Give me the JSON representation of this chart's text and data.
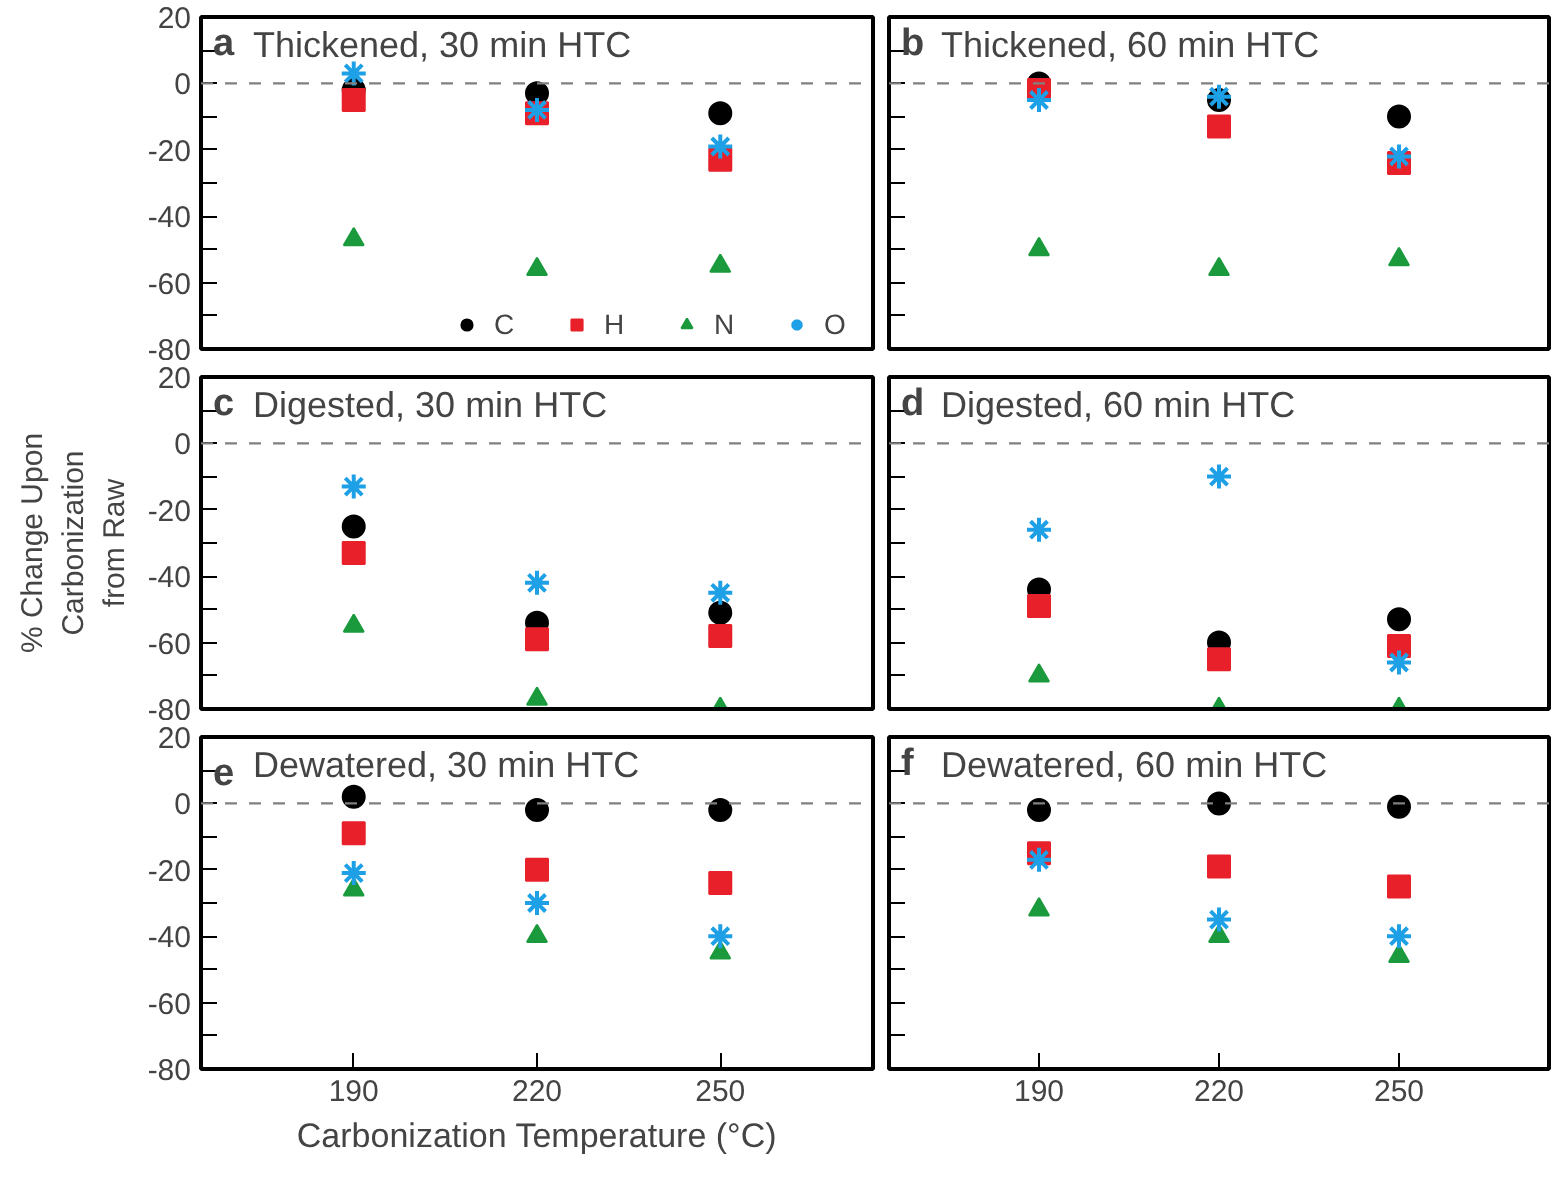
{
  "chart_data": [
    {
      "type": "scatter",
      "title": "Thickened, 30 min HTC",
      "annotations": [
        "a"
      ],
      "x": [
        190,
        220,
        250
      ],
      "xlim": [
        165,
        275
      ],
      "xticks": [
        190,
        220,
        250
      ],
      "ylim": [
        -80,
        20
      ],
      "yticks": [
        -80,
        {
          "value": -70,
          "label": null
        },
        -60,
        {
          "value": -50,
          "label": null
        },
        -40,
        {
          "value": -30,
          "label": null
        },
        -20,
        {
          "value": -10,
          "label": null
        },
        0,
        {
          "value": 10,
          "label": null
        },
        20
      ],
      "tick_labels": "y",
      "grid": false,
      "legend": "bottom right",
      "ref_lines": [
        {
          "axis": "y",
          "value": 0,
          "color": "#808080",
          "line_style": "dashed"
        }
      ],
      "series": [
        {
          "name": "C",
          "color": "#000000",
          "marker": "circle",
          "values": [
            -2,
            -3,
            -9
          ]
        },
        {
          "name": "H",
          "color": "#e8202a",
          "marker": "square",
          "values": [
            -5,
            -9,
            -23
          ]
        },
        {
          "name": "N",
          "color": "#1a9a3c",
          "marker": "triangle",
          "values": [
            -47,
            -56,
            -55
          ]
        },
        {
          "name": "O",
          "color": "#1ea0e6",
          "marker": "cross",
          "values": [
            3,
            -8,
            -19
          ]
        }
      ]
    },
    {
      "type": "scatter",
      "title": "Thickened, 60 min HTC",
      "annotations": [
        "b"
      ],
      "x": [
        190,
        220,
        250
      ],
      "xlim": [
        165,
        275
      ],
      "xticks": [
        190,
        220,
        250
      ],
      "ylim": [
        -80,
        20
      ],
      "yticks": [
        -80,
        {
          "value": -70,
          "label": null
        },
        -60,
        {
          "value": -50,
          "label": null
        },
        -40,
        {
          "value": -30,
          "label": null
        },
        -20,
        {
          "value": -10,
          "label": null
        },
        0,
        {
          "value": 10,
          "label": null
        },
        20
      ],
      "tick_labels": false,
      "grid": false,
      "ref_lines": [
        {
          "axis": "y",
          "value": 0,
          "color": "#808080",
          "line_style": "dashed"
        }
      ],
      "series": [
        {
          "color": "#000000",
          "marker": "circle",
          "values": [
            0,
            -5,
            -10
          ]
        },
        {
          "color": "#e8202a",
          "marker": "square",
          "values": [
            -2,
            -13,
            -24
          ]
        },
        {
          "color": "#1a9a3c",
          "marker": "triangle",
          "values": [
            -50,
            -56,
            -53
          ]
        },
        {
          "color": "#1ea0e6",
          "marker": "cross",
          "values": [
            -5,
            -4,
            -22
          ]
        }
      ]
    },
    {
      "type": "scatter",
      "title": "Digested, 30 min HTC",
      "annotations": [
        "c"
      ],
      "ylabel": "% Change Upon Carbonization from Raw",
      "x": [
        190,
        220,
        250
      ],
      "xlim": [
        165,
        275
      ],
      "xticks": [
        190,
        220,
        250
      ],
      "ylim": [
        -80,
        20
      ],
      "yticks": [
        -80,
        {
          "value": -70,
          "label": null
        },
        -60,
        {
          "value": -50,
          "label": null
        },
        -40,
        {
          "value": -30,
          "label": null
        },
        -20,
        {
          "value": -10,
          "label": null
        },
        0,
        {
          "value": 10,
          "label": null
        },
        20
      ],
      "tick_labels": "y",
      "grid": false,
      "ref_lines": [
        {
          "axis": "y",
          "value": 0,
          "color": "#808080",
          "line_style": "dashed"
        }
      ],
      "series": [
        {
          "color": "#000000",
          "marker": "circle",
          "values": [
            -25,
            -54,
            -51
          ]
        },
        {
          "color": "#e8202a",
          "marker": "square",
          "values": [
            -33,
            -59,
            -58
          ]
        },
        {
          "color": "#1a9a3c",
          "marker": "triangle",
          "values": [
            -55,
            -77,
            -80
          ]
        },
        {
          "color": "#1ea0e6",
          "marker": "cross",
          "values": [
            -13,
            -42,
            -45
          ]
        }
      ]
    },
    {
      "type": "scatter",
      "title": "Digested, 60 min HTC",
      "annotations": [
        "d"
      ],
      "x": [
        190,
        220,
        250
      ],
      "xlim": [
        165,
        275
      ],
      "xticks": [
        190,
        220,
        250
      ],
      "ylim": [
        -80,
        20
      ],
      "yticks": [
        -80,
        {
          "value": -70,
          "label": null
        },
        -60,
        {
          "value": -50,
          "label": null
        },
        -40,
        {
          "value": -30,
          "label": null
        },
        -20,
        {
          "value": -10,
          "label": null
        },
        0,
        {
          "value": 10,
          "label": null
        },
        20
      ],
      "tick_labels": false,
      "grid": false,
      "ref_lines": [
        {
          "axis": "y",
          "value": 0,
          "color": "#808080",
          "line_style": "dashed"
        }
      ],
      "series": [
        {
          "color": "#000000",
          "marker": "circle",
          "values": [
            -44,
            -60,
            -53
          ]
        },
        {
          "color": "#e8202a",
          "marker": "square",
          "values": [
            -49,
            -65,
            -61
          ]
        },
        {
          "color": "#1a9a3c",
          "marker": "triangle",
          "values": [
            -70,
            -80,
            -80
          ]
        },
        {
          "color": "#1ea0e6",
          "marker": "cross",
          "values": [
            -26,
            -10,
            -66
          ]
        }
      ]
    },
    {
      "type": "scatter",
      "title": "Dewatered, 30 min HTC",
      "annotations": [
        "e"
      ],
      "xlabel": "Carbonization Temperature (°C)",
      "x": [
        190,
        220,
        250
      ],
      "xlim": [
        165,
        275
      ],
      "xticks": [
        190,
        220,
        250
      ],
      "ylim": [
        -80,
        20
      ],
      "yticks": [
        -80,
        {
          "value": -70,
          "label": null
        },
        -60,
        {
          "value": -50,
          "label": null
        },
        -40,
        {
          "value": -30,
          "label": null
        },
        -20,
        {
          "value": -10,
          "label": null
        },
        0,
        {
          "value": 10,
          "label": null
        },
        20
      ],
      "grid": false,
      "ref_lines": [
        {
          "axis": "y",
          "value": 0,
          "color": "#808080",
          "line_style": "dashed"
        }
      ],
      "series": [
        {
          "color": "#000000",
          "marker": "circle",
          "values": [
            2,
            -2,
            -2
          ]
        },
        {
          "color": "#e8202a",
          "marker": "square",
          "values": [
            -9,
            -20,
            -24
          ]
        },
        {
          "color": "#1a9a3c",
          "marker": "triangle",
          "values": [
            -26,
            -40,
            -45
          ]
        },
        {
          "color": "#1ea0e6",
          "marker": "cross",
          "values": [
            -21,
            -30,
            -40
          ]
        }
      ]
    },
    {
      "type": "scatter",
      "title": "Dewatered, 60 min HTC",
      "annotations": [
        "f"
      ],
      "x": [
        190,
        220,
        250
      ],
      "xlim": [
        165,
        275
      ],
      "xticks": [
        190,
        220,
        250
      ],
      "ylim": [
        -80,
        20
      ],
      "yticks": [
        -80,
        {
          "value": -70,
          "label": null
        },
        -60,
        {
          "value": -50,
          "label": null
        },
        -40,
        {
          "value": -30,
          "label": null
        },
        -20,
        {
          "value": -10,
          "label": null
        },
        0,
        {
          "value": 10,
          "label": null
        },
        20
      ],
      "tick_labels": "x",
      "grid": false,
      "ref_lines": [
        {
          "axis": "y",
          "value": 0,
          "color": "#808080",
          "line_style": "dashed"
        }
      ],
      "series": [
        {
          "color": "#000000",
          "marker": "circle",
          "values": [
            -2,
            0,
            -1
          ]
        },
        {
          "color": "#e8202a",
          "marker": "square",
          "values": [
            -15,
            -19,
            -25
          ]
        },
        {
          "color": "#1a9a3c",
          "marker": "triangle",
          "values": [
            -32,
            -40,
            -46
          ]
        },
        {
          "color": "#1ea0e6",
          "marker": "cross",
          "values": [
            -17,
            -35,
            -40
          ]
        }
      ]
    }
  ]
}
